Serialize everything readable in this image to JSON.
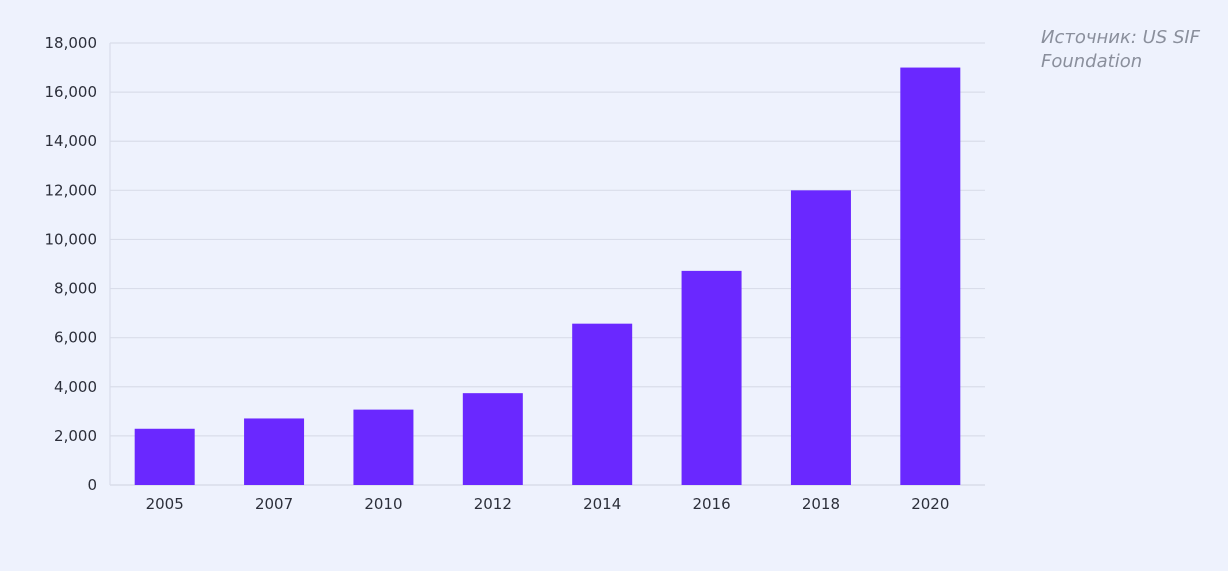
{
  "source_note": "Источник: US SIF Foundation",
  "colors": {
    "bar": "#6a28ff",
    "grid": "#d9ddea",
    "background": "#eef2fd",
    "text": "#2c2f3a"
  },
  "chart_data": {
    "type": "bar",
    "categories": [
      "2005",
      "2007",
      "2010",
      "2012",
      "2014",
      "2016",
      "2018",
      "2020"
    ],
    "values": [
      2290,
      2710,
      3070,
      3740,
      6570,
      8720,
      12000,
      17000
    ],
    "title": "",
    "xlabel": "",
    "ylabel": "",
    "ylim": [
      0,
      18000
    ],
    "yticks": [
      0,
      2000,
      4000,
      6000,
      8000,
      10000,
      12000,
      14000,
      16000,
      18000
    ],
    "ytick_labels": [
      "0",
      "2,000",
      "4,000",
      "6,000",
      "8,000",
      "10,000",
      "12,000",
      "14,000",
      "16,000",
      "18,000"
    ],
    "grid": true,
    "legend": "none"
  }
}
